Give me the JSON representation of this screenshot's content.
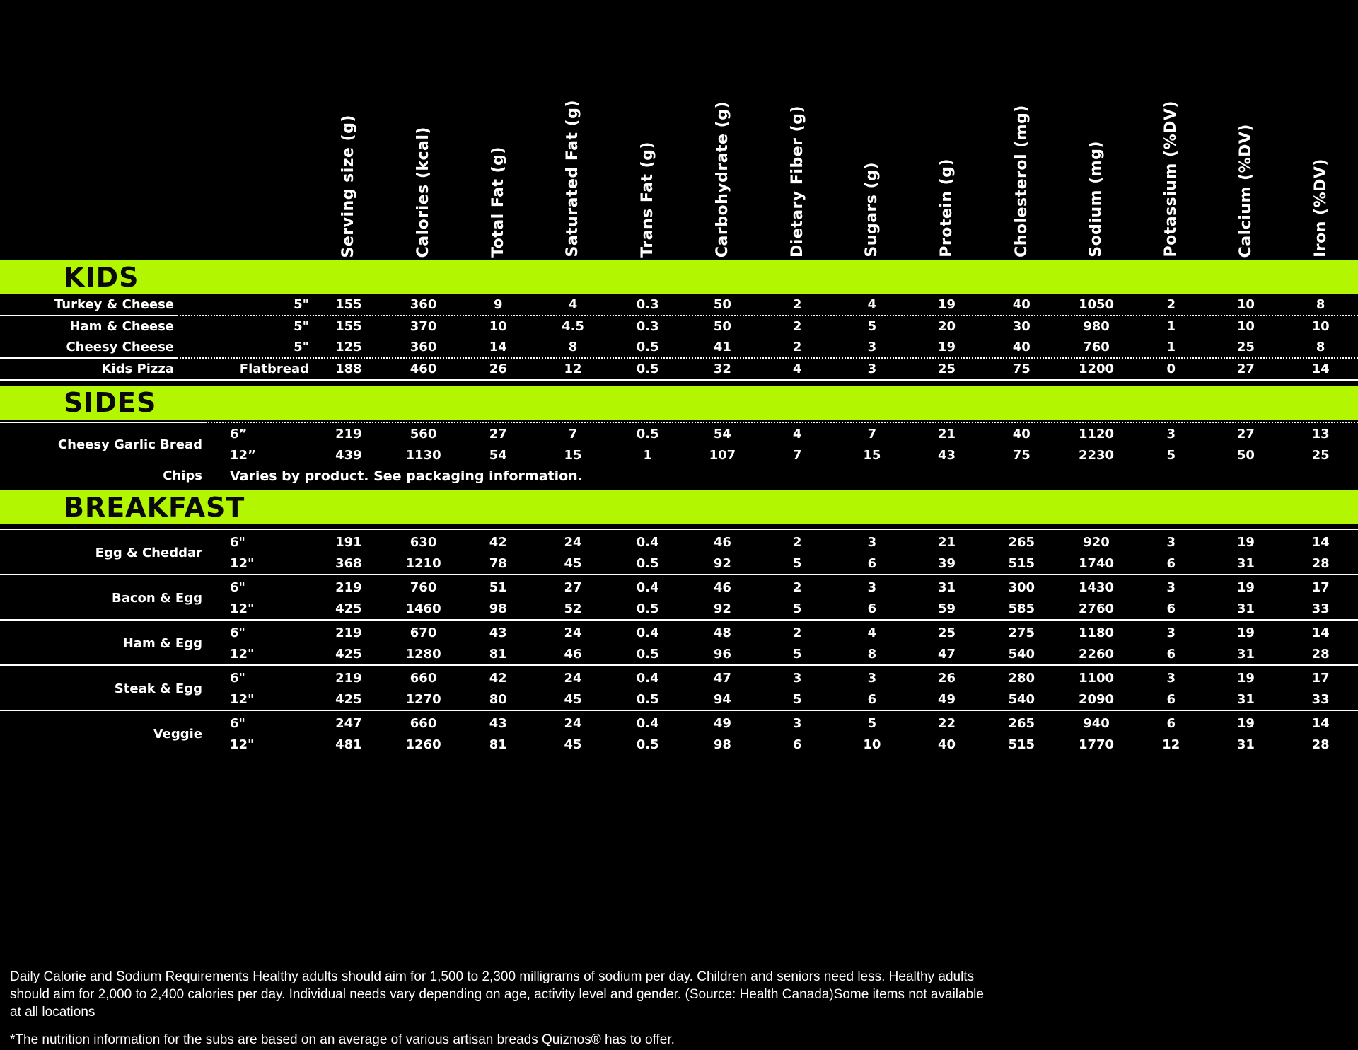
{
  "colors": {
    "accent": "#b2f602",
    "background": "#000000",
    "row_text": "#ffffff",
    "bar_text": "#0a0a0a"
  },
  "columns": [
    "Serving size (g)",
    "Calories (kcal)",
    "Total Fat (g)",
    "Saturated Fat (g)",
    "Trans Fat (g)",
    "Carbohydrate (g)",
    "Dietary Fiber (g)",
    "Sugars (g)",
    "Protein (g)",
    "Cholesterol (mg)",
    "Sodium (mg)",
    "Potassium (%DV)",
    "Calcium (%DV)",
    "Iron (%DV)"
  ],
  "sections": [
    {
      "title": "KIDS",
      "items": [
        {
          "label": "Turkey & Cheese",
          "rows": [
            {
              "size": "5\"",
              "values": [
                "155",
                "360",
                "9",
                "4",
                "0.3",
                "50",
                "2",
                "4",
                "19",
                "40",
                "1050",
                "2",
                "10",
                "8"
              ]
            }
          ]
        },
        {
          "label": "Ham & Cheese",
          "rows": [
            {
              "size": "5\"",
              "values": [
                "155",
                "370",
                "10",
                "4.5",
                "0.3",
                "50",
                "2",
                "5",
                "20",
                "30",
                "980",
                "1",
                "10",
                "10"
              ]
            }
          ]
        },
        {
          "label": "Cheesy Cheese",
          "rows": [
            {
              "size": "5\"",
              "values": [
                "125",
                "360",
                "14",
                "8",
                "0.5",
                "41",
                "2",
                "3",
                "19",
                "40",
                "760",
                "1",
                "25",
                "8"
              ]
            }
          ]
        },
        {
          "label": "Kids Pizza",
          "rows": [
            {
              "size": "Flatbread",
              "values": [
                "188",
                "460",
                "26",
                "12",
                "0.5",
                "32",
                "4",
                "3",
                "25",
                "75",
                "1200",
                "0",
                "27",
                "14"
              ]
            }
          ]
        }
      ]
    },
    {
      "title": "SIDES",
      "items": [
        {
          "label": "Cheesy Garlic Bread",
          "rows": [
            {
              "size": "6”",
              "values": [
                "219",
                "560",
                "27",
                "7",
                "0.5",
                "54",
                "4",
                "7",
                "21",
                "40",
                "1120",
                "3",
                "27",
                "13"
              ]
            },
            {
              "size": "12”",
              "values": [
                "439",
                "1130",
                "54",
                "15",
                "1",
                "107",
                "7",
                "15",
                "43",
                "75",
                "2230",
                "5",
                "50",
                "25"
              ]
            }
          ]
        },
        {
          "label": "Chips",
          "note": "Varies by product. See packaging information."
        }
      ]
    },
    {
      "title": "BREAKFAST",
      "items": [
        {
          "label": "Egg & Cheddar",
          "rows": [
            {
              "size": "6\"",
              "values": [
                "191",
                "630",
                "42",
                "24",
                "0.4",
                "46",
                "2",
                "3",
                "21",
                "265",
                "920",
                "3",
                "19",
                "14"
              ]
            },
            {
              "size": "12\"",
              "values": [
                "368",
                "1210",
                "78",
                "45",
                "0.5",
                "92",
                "5",
                "6",
                "39",
                "515",
                "1740",
                "6",
                "31",
                "28"
              ]
            }
          ]
        },
        {
          "label": "Bacon & Egg",
          "rows": [
            {
              "size": "6\"",
              "values": [
                "219",
                "760",
                "51",
                "27",
                "0.4",
                "46",
                "2",
                "3",
                "31",
                "300",
                "1430",
                "3",
                "19",
                "17"
              ]
            },
            {
              "size": "12\"",
              "values": [
                "425",
                "1460",
                "98",
                "52",
                "0.5",
                "92",
                "5",
                "6",
                "59",
                "585",
                "2760",
                "6",
                "31",
                "33"
              ]
            }
          ]
        },
        {
          "label": "Ham & Egg",
          "rows": [
            {
              "size": "6\"",
              "values": [
                "219",
                "670",
                "43",
                "24",
                "0.4",
                "48",
                "2",
                "4",
                "25",
                "275",
                "1180",
                "3",
                "19",
                "14"
              ]
            },
            {
              "size": "12\"",
              "values": [
                "425",
                "1280",
                "81",
                "46",
                "0.5",
                "96",
                "5",
                "8",
                "47",
                "540",
                "2260",
                "6",
                "31",
                "28"
              ]
            }
          ]
        },
        {
          "label": "Steak & Egg",
          "rows": [
            {
              "size": "6\"",
              "values": [
                "219",
                "660",
                "42",
                "24",
                "0.4",
                "47",
                "3",
                "3",
                "26",
                "280",
                "1100",
                "3",
                "19",
                "17"
              ]
            },
            {
              "size": "12\"",
              "values": [
                "425",
                "1270",
                "80",
                "45",
                "0.5",
                "94",
                "5",
                "6",
                "49",
                "540",
                "2090",
                "6",
                "31",
                "33"
              ]
            }
          ]
        },
        {
          "label": "Veggie",
          "rows": [
            {
              "size": "6\"",
              "values": [
                "247",
                "660",
                "43",
                "24",
                "0.4",
                "49",
                "3",
                "5",
                "22",
                "265",
                "940",
                "6",
                "19",
                "14"
              ]
            },
            {
              "size": "12\"",
              "values": [
                "481",
                "1260",
                "81",
                "45",
                "0.5",
                "98",
                "6",
                "10",
                "40",
                "515",
                "1770",
                "12",
                "31",
                "28"
              ]
            }
          ]
        }
      ]
    }
  ],
  "footer": {
    "lines": [
      "Daily Calorie and Sodium Requirements Healthy adults should aim for 1,500 to 2,300 milligrams of sodium per day. Children and seniors need less. Healthy adults",
      "should aim for 2,000 to 2,400 calories per day. Individual needs vary depending on age, activity level and gender. (Source: Health Canada)Some items not available",
      "at all locations"
    ],
    "footnote": "*The nutrition information for the subs are based on an average of various artisan breads Quiznos® has to offer."
  }
}
